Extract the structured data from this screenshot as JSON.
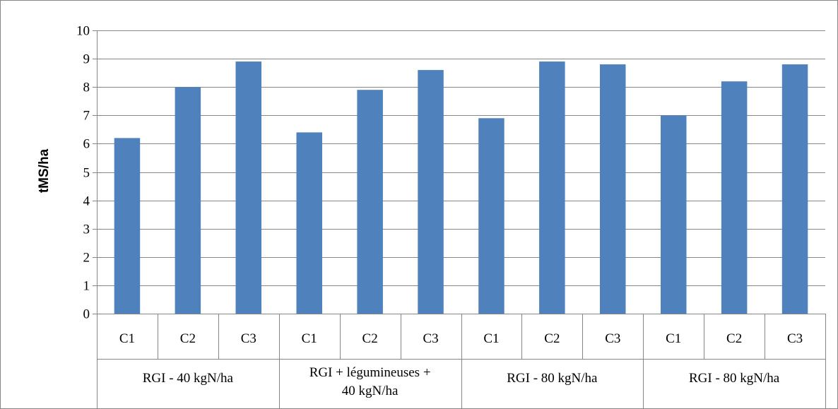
{
  "chart_data": {
    "type": "bar",
    "ylabel": "tMS/ha",
    "ylim": [
      0,
      10
    ],
    "yticks": [
      0,
      1,
      2,
      3,
      4,
      5,
      6,
      7,
      8,
      9,
      10
    ],
    "grid": true,
    "legend": "none",
    "series_color": "#4f81bd",
    "groups": [
      {
        "label_lines": [
          "RGI - 40 kgN/ha"
        ],
        "categories": [
          "C1",
          "C2",
          "C3"
        ],
        "values": [
          6.2,
          8.0,
          8.9
        ]
      },
      {
        "label_lines": [
          "RGI + légumineuses +",
          "40 kgN/ha"
        ],
        "categories": [
          "C1",
          "C2",
          "C3"
        ],
        "values": [
          6.4,
          7.9,
          8.6
        ]
      },
      {
        "label_lines": [
          "RGI - 80 kgN/ha"
        ],
        "categories": [
          "C1",
          "C2",
          "C3"
        ],
        "values": [
          6.9,
          8.9,
          8.8
        ]
      },
      {
        "label_lines": [
          "RGI - 80 kgN/ha"
        ],
        "categories": [
          "C1",
          "C2",
          "C3"
        ],
        "values": [
          7.0,
          8.2,
          8.8
        ]
      }
    ]
  }
}
